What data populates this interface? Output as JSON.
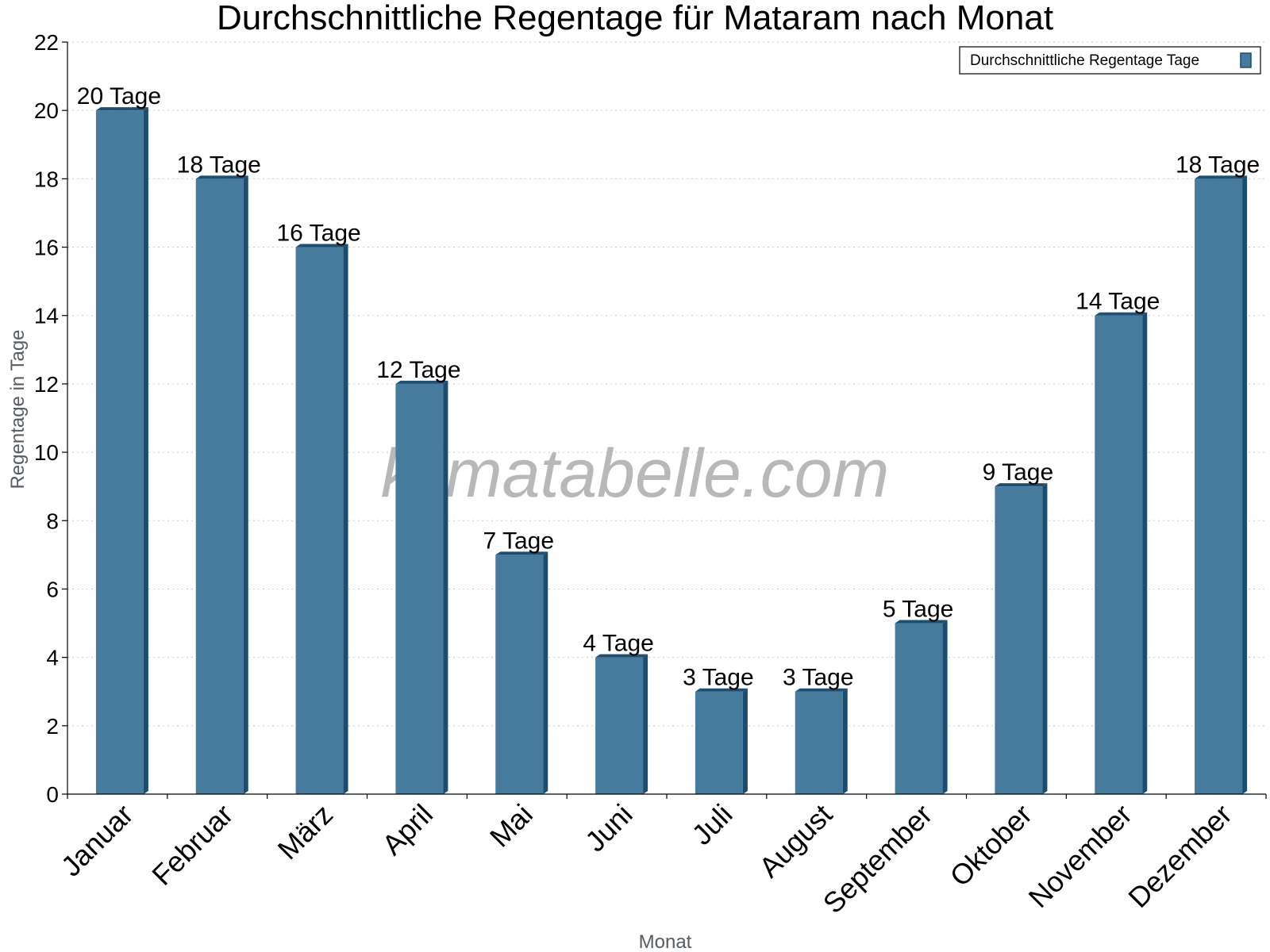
{
  "chart_data": {
    "type": "bar",
    "title": "Durchschnittliche Regentage für Mataram nach Monat",
    "xlabel": "Monat",
    "ylabel": "Regentage in Tage",
    "categories": [
      "Januar",
      "Februar",
      "März",
      "April",
      "Mai",
      "Juni",
      "Juli",
      "August",
      "September",
      "Oktober",
      "November",
      "Dezember"
    ],
    "series": [
      {
        "name": "Durchschnittliche Regentage Tage",
        "values": [
          20,
          18,
          16,
          12,
          7,
          4,
          3,
          3,
          5,
          9,
          14,
          18
        ],
        "data_labels": [
          "20 Tage",
          "18 Tage",
          "16 Tage",
          "12 Tage",
          "7 Tage",
          "4 Tage",
          "3 Tage",
          "3 Tage",
          "5 Tage",
          "9 Tage",
          "14 Tage",
          "18 Tage"
        ],
        "color": "#467b9e"
      }
    ],
    "ylim": [
      0,
      22
    ],
    "yticks": [
      "0",
      "2",
      "4",
      "6",
      "8",
      "10",
      "12",
      "14",
      "16",
      "18",
      "20",
      "22"
    ],
    "grid": true,
    "legend_position": "top-right"
  },
  "watermark": "klimatabelle.com",
  "colors": {
    "bar_front": "#467b9e",
    "bar_side": "#1b4d70",
    "bar_top": "#1d4f73"
  }
}
